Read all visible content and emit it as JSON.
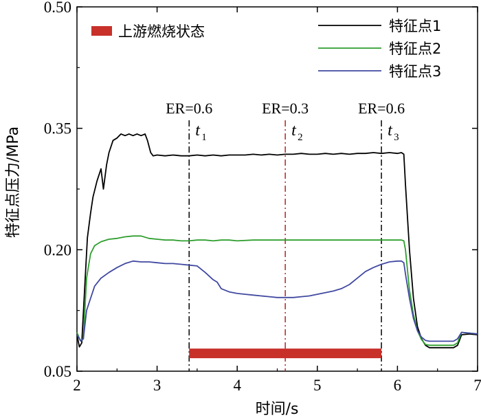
{
  "chart_data": {
    "type": "line",
    "title": "",
    "xlabel": "时间/s",
    "ylabel": "特征点压力/MPa",
    "xlim": [
      2,
      7
    ],
    "ylim": [
      0.05,
      0.5
    ],
    "xticks": [
      2,
      3,
      4,
      5,
      6,
      7
    ],
    "xtick_labels": [
      "2",
      "3",
      "4",
      "5",
      "6",
      "7"
    ],
    "yticks": [
      0.05,
      0.2,
      0.35,
      0.5
    ],
    "ytick_labels": [
      "0.05",
      "0.20",
      "0.35",
      "0.50"
    ],
    "grid": false,
    "legend_position": "top-right",
    "series": [
      {
        "name": "特征点1",
        "color": "#000000",
        "points": [
          [
            2.0,
            0.095
          ],
          [
            2.03,
            0.08
          ],
          [
            2.06,
            0.085
          ],
          [
            2.1,
            0.16
          ],
          [
            2.13,
            0.215
          ],
          [
            2.17,
            0.245
          ],
          [
            2.2,
            0.265
          ],
          [
            2.25,
            0.285
          ],
          [
            2.3,
            0.3
          ],
          [
            2.33,
            0.275
          ],
          [
            2.37,
            0.305
          ],
          [
            2.4,
            0.32
          ],
          [
            2.45,
            0.335
          ],
          [
            2.5,
            0.338
          ],
          [
            2.55,
            0.343
          ],
          [
            2.6,
            0.341
          ],
          [
            2.65,
            0.343
          ],
          [
            2.7,
            0.341
          ],
          [
            2.75,
            0.343
          ],
          [
            2.8,
            0.341
          ],
          [
            2.85,
            0.343
          ],
          [
            2.88,
            0.335
          ],
          [
            2.92,
            0.32
          ],
          [
            2.95,
            0.316
          ],
          [
            3.0,
            0.317
          ],
          [
            3.1,
            0.316
          ],
          [
            3.2,
            0.317
          ],
          [
            3.3,
            0.316
          ],
          [
            3.4,
            0.316
          ],
          [
            3.5,
            0.317
          ],
          [
            3.6,
            0.316
          ],
          [
            3.7,
            0.317
          ],
          [
            3.8,
            0.316
          ],
          [
            3.9,
            0.317
          ],
          [
            4.0,
            0.317
          ],
          [
            4.1,
            0.317
          ],
          [
            4.2,
            0.318
          ],
          [
            4.3,
            0.317
          ],
          [
            4.4,
            0.318
          ],
          [
            4.5,
            0.317
          ],
          [
            4.6,
            0.318
          ],
          [
            4.7,
            0.318
          ],
          [
            4.8,
            0.319
          ],
          [
            4.9,
            0.318
          ],
          [
            5.0,
            0.318
          ],
          [
            5.1,
            0.319
          ],
          [
            5.2,
            0.318
          ],
          [
            5.3,
            0.319
          ],
          [
            5.4,
            0.318
          ],
          [
            5.5,
            0.319
          ],
          [
            5.6,
            0.319
          ],
          [
            5.7,
            0.32
          ],
          [
            5.8,
            0.319
          ],
          [
            5.9,
            0.32
          ],
          [
            6.0,
            0.319
          ],
          [
            6.05,
            0.32
          ],
          [
            6.08,
            0.318
          ],
          [
            6.1,
            0.28
          ],
          [
            6.15,
            0.2
          ],
          [
            6.2,
            0.14
          ],
          [
            6.25,
            0.105
          ],
          [
            6.3,
            0.09
          ],
          [
            6.35,
            0.082
          ],
          [
            6.4,
            0.079
          ],
          [
            6.5,
            0.079
          ],
          [
            6.6,
            0.079
          ],
          [
            6.7,
            0.079
          ],
          [
            6.75,
            0.082
          ],
          [
            6.8,
            0.095
          ],
          [
            6.9,
            0.096
          ],
          [
            7.0,
            0.095
          ]
        ]
      },
      {
        "name": "特征点2",
        "color": "#2e9e2e",
        "points": [
          [
            2.0,
            0.098
          ],
          [
            2.04,
            0.088
          ],
          [
            2.08,
            0.09
          ],
          [
            2.12,
            0.165
          ],
          [
            2.17,
            0.195
          ],
          [
            2.22,
            0.205
          ],
          [
            2.3,
            0.21
          ],
          [
            2.4,
            0.213
          ],
          [
            2.5,
            0.214
          ],
          [
            2.6,
            0.216
          ],
          [
            2.7,
            0.217
          ],
          [
            2.8,
            0.217
          ],
          [
            2.9,
            0.214
          ],
          [
            3.0,
            0.213
          ],
          [
            3.1,
            0.212
          ],
          [
            3.2,
            0.212
          ],
          [
            3.3,
            0.211
          ],
          [
            3.4,
            0.211
          ],
          [
            3.5,
            0.212
          ],
          [
            3.6,
            0.212
          ],
          [
            3.7,
            0.211
          ],
          [
            3.8,
            0.212
          ],
          [
            3.9,
            0.212
          ],
          [
            4.0,
            0.211
          ],
          [
            4.2,
            0.212
          ],
          [
            4.4,
            0.212
          ],
          [
            4.6,
            0.212
          ],
          [
            4.8,
            0.212
          ],
          [
            5.0,
            0.212
          ],
          [
            5.2,
            0.212
          ],
          [
            5.4,
            0.212
          ],
          [
            5.6,
            0.212
          ],
          [
            5.8,
            0.212
          ],
          [
            6.0,
            0.212
          ],
          [
            6.05,
            0.212
          ],
          [
            6.08,
            0.211
          ],
          [
            6.1,
            0.2
          ],
          [
            6.15,
            0.15
          ],
          [
            6.2,
            0.12
          ],
          [
            6.25,
            0.1
          ],
          [
            6.3,
            0.089
          ],
          [
            6.35,
            0.083
          ],
          [
            6.4,
            0.082
          ],
          [
            6.5,
            0.082
          ],
          [
            6.6,
            0.082
          ],
          [
            6.7,
            0.082
          ],
          [
            6.75,
            0.085
          ],
          [
            6.8,
            0.098
          ],
          [
            6.9,
            0.097
          ],
          [
            7.0,
            0.096
          ]
        ]
      },
      {
        "name": "特征点3",
        "color": "#4048a0",
        "points": [
          [
            2.0,
            0.095
          ],
          [
            2.05,
            0.087
          ],
          [
            2.08,
            0.09
          ],
          [
            2.12,
            0.125
          ],
          [
            2.17,
            0.14
          ],
          [
            2.22,
            0.155
          ],
          [
            2.3,
            0.165
          ],
          [
            2.4,
            0.172
          ],
          [
            2.5,
            0.178
          ],
          [
            2.6,
            0.183
          ],
          [
            2.7,
            0.186
          ],
          [
            2.8,
            0.185
          ],
          [
            2.9,
            0.185
          ],
          [
            3.0,
            0.184
          ],
          [
            3.1,
            0.183
          ],
          [
            3.2,
            0.183
          ],
          [
            3.3,
            0.182
          ],
          [
            3.4,
            0.181
          ],
          [
            3.5,
            0.18
          ],
          [
            3.6,
            0.172
          ],
          [
            3.7,
            0.163
          ],
          [
            3.75,
            0.16
          ],
          [
            3.8,
            0.152
          ],
          [
            3.9,
            0.148
          ],
          [
            4.0,
            0.146
          ],
          [
            4.1,
            0.145
          ],
          [
            4.2,
            0.144
          ],
          [
            4.3,
            0.143
          ],
          [
            4.4,
            0.142
          ],
          [
            4.5,
            0.141
          ],
          [
            4.6,
            0.141
          ],
          [
            4.7,
            0.141
          ],
          [
            4.8,
            0.142
          ],
          [
            4.9,
            0.143
          ],
          [
            5.0,
            0.145
          ],
          [
            5.1,
            0.147
          ],
          [
            5.2,
            0.149
          ],
          [
            5.3,
            0.152
          ],
          [
            5.4,
            0.157
          ],
          [
            5.5,
            0.165
          ],
          [
            5.6,
            0.173
          ],
          [
            5.7,
            0.178
          ],
          [
            5.8,
            0.182
          ],
          [
            5.9,
            0.185
          ],
          [
            6.0,
            0.186
          ],
          [
            6.05,
            0.186
          ],
          [
            6.08,
            0.184
          ],
          [
            6.1,
            0.17
          ],
          [
            6.15,
            0.14
          ],
          [
            6.2,
            0.115
          ],
          [
            6.25,
            0.1
          ],
          [
            6.3,
            0.092
          ],
          [
            6.35,
            0.088
          ],
          [
            6.4,
            0.087
          ],
          [
            6.5,
            0.087
          ],
          [
            6.6,
            0.087
          ],
          [
            6.7,
            0.087
          ],
          [
            6.75,
            0.09
          ],
          [
            6.8,
            0.098
          ],
          [
            6.9,
            0.097
          ],
          [
            7.0,
            0.096
          ]
        ]
      }
    ],
    "vlines": [
      {
        "x": 3.4,
        "color": "#000000",
        "label_top": "ER=0.6",
        "label_t": "t",
        "label_sub": "1"
      },
      {
        "x": 4.6,
        "color": "#b22222",
        "label_top": "ER=0.3",
        "label_t": "t",
        "label_sub": "2"
      },
      {
        "x": 5.8,
        "color": "#000000",
        "label_top": "ER=0.6",
        "label_t": "t",
        "label_sub": "3"
      }
    ],
    "hbar": {
      "x_start": 3.4,
      "x_end": 5.8,
      "y": 0.072,
      "color": "#c8302a",
      "label": "上游燃烧状态"
    }
  }
}
